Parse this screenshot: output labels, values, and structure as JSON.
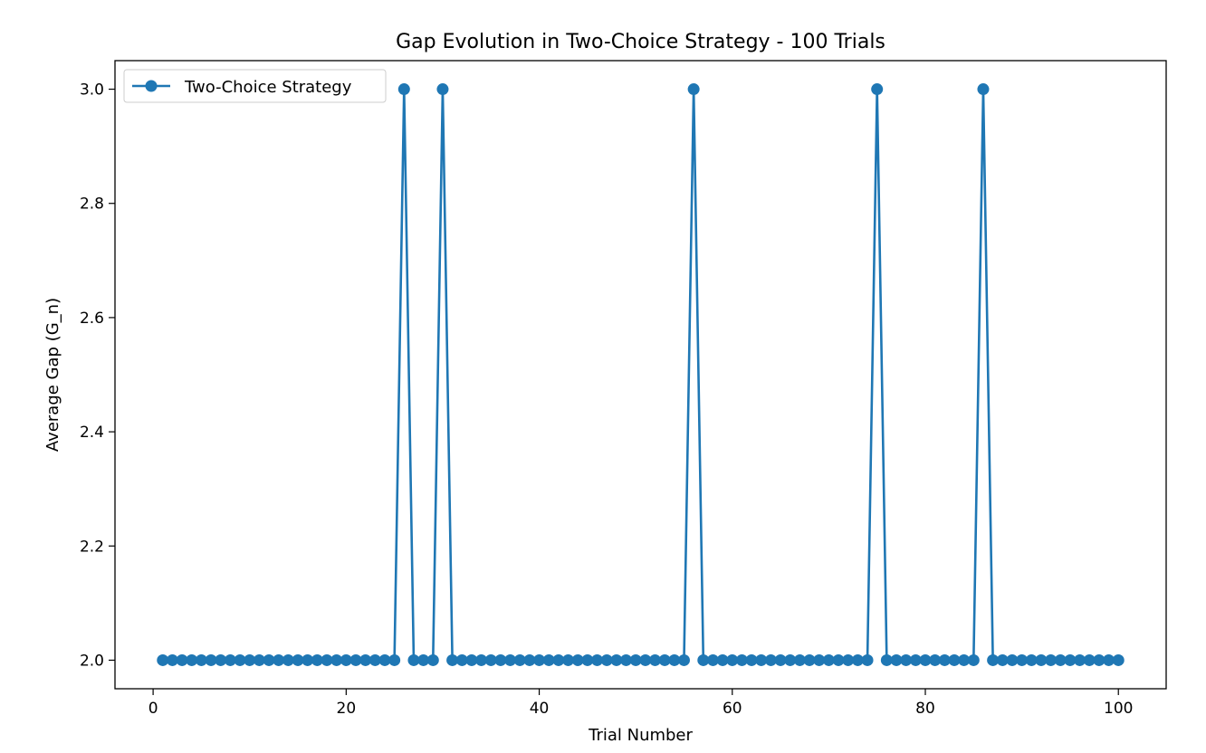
{
  "chart_data": {
    "type": "line",
    "title": "Gap Evolution in Two-Choice Strategy - 100 Trials",
    "xlabel": "Trial Number",
    "ylabel": "Average Gap (G_n)",
    "xlim": [
      -3.95,
      104.95
    ],
    "ylim": [
      1.95,
      3.05
    ],
    "xticks": [
      0,
      20,
      40,
      60,
      80,
      100
    ],
    "yticks": [
      2.0,
      2.2,
      2.4,
      2.6,
      2.8,
      3.0
    ],
    "xtick_labels": [
      "0",
      "20",
      "40",
      "60",
      "80",
      "100"
    ],
    "ytick_labels": [
      "2.0",
      "2.2",
      "2.4",
      "2.6",
      "2.8",
      "3.0"
    ],
    "grid": false,
    "legend_position": "top-left",
    "colors": {
      "series": "#1f77b4"
    },
    "series": [
      {
        "name": "Two-Choice Strategy",
        "marker": "circle",
        "x": [
          1,
          2,
          3,
          4,
          5,
          6,
          7,
          8,
          9,
          10,
          11,
          12,
          13,
          14,
          15,
          16,
          17,
          18,
          19,
          20,
          21,
          22,
          23,
          24,
          25,
          26,
          27,
          28,
          29,
          30,
          31,
          32,
          33,
          34,
          35,
          36,
          37,
          38,
          39,
          40,
          41,
          42,
          43,
          44,
          45,
          46,
          47,
          48,
          49,
          50,
          51,
          52,
          53,
          54,
          55,
          56,
          57,
          58,
          59,
          60,
          61,
          62,
          63,
          64,
          65,
          66,
          67,
          68,
          69,
          70,
          71,
          72,
          73,
          74,
          75,
          76,
          77,
          78,
          79,
          80,
          81,
          82,
          83,
          84,
          85,
          86,
          87,
          88,
          89,
          90,
          91,
          92,
          93,
          94,
          95,
          96,
          97,
          98,
          99,
          100
        ],
        "y": [
          2,
          2,
          2,
          2,
          2,
          2,
          2,
          2,
          2,
          2,
          2,
          2,
          2,
          2,
          2,
          2,
          2,
          2,
          2,
          2,
          2,
          2,
          2,
          2,
          2,
          3,
          2,
          2,
          2,
          3,
          2,
          2,
          2,
          2,
          2,
          2,
          2,
          2,
          2,
          2,
          2,
          2,
          2,
          2,
          2,
          2,
          2,
          2,
          2,
          2,
          2,
          2,
          2,
          2,
          2,
          3,
          2,
          2,
          2,
          2,
          2,
          2,
          2,
          2,
          2,
          2,
          2,
          2,
          2,
          2,
          2,
          2,
          2,
          2,
          3,
          2,
          2,
          2,
          2,
          2,
          2,
          2,
          2,
          2,
          2,
          3,
          2,
          2,
          2,
          2,
          2,
          2,
          2,
          2,
          2,
          2,
          2,
          2,
          2,
          2
        ]
      }
    ]
  }
}
